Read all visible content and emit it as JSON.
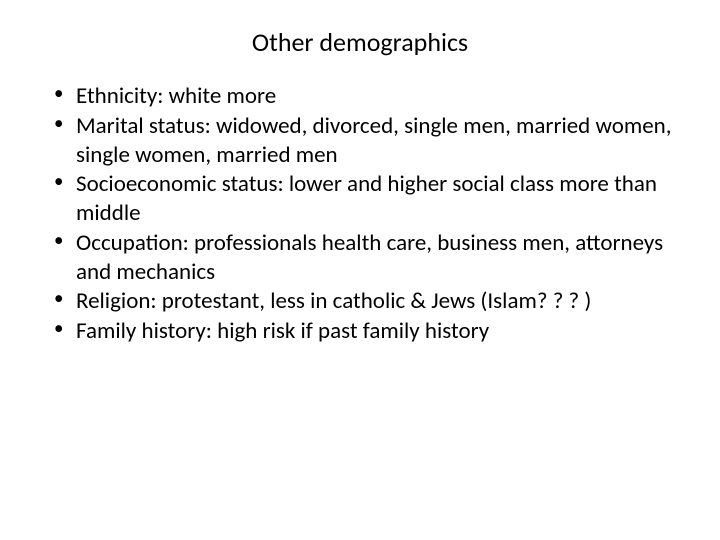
{
  "slide": {
    "title": "Other demographics",
    "bullets": [
      "Ethnicity: white more",
      "Marital status: widowed, divorced, single men, married women, single women, married men",
      "Socioeconomic status: lower and higher social class more than middle",
      "Occupation: professionals health care, business men, attorneys and mechanics",
      "Religion: protestant, less in catholic & Jews (Islam? ? ? )",
      "Family history: high risk if past family history"
    ],
    "style": {
      "background_color": "#ffffff",
      "text_color": "#000000",
      "title_fontsize": 26,
      "body_fontsize": 23,
      "font_family": "Calibri"
    }
  }
}
